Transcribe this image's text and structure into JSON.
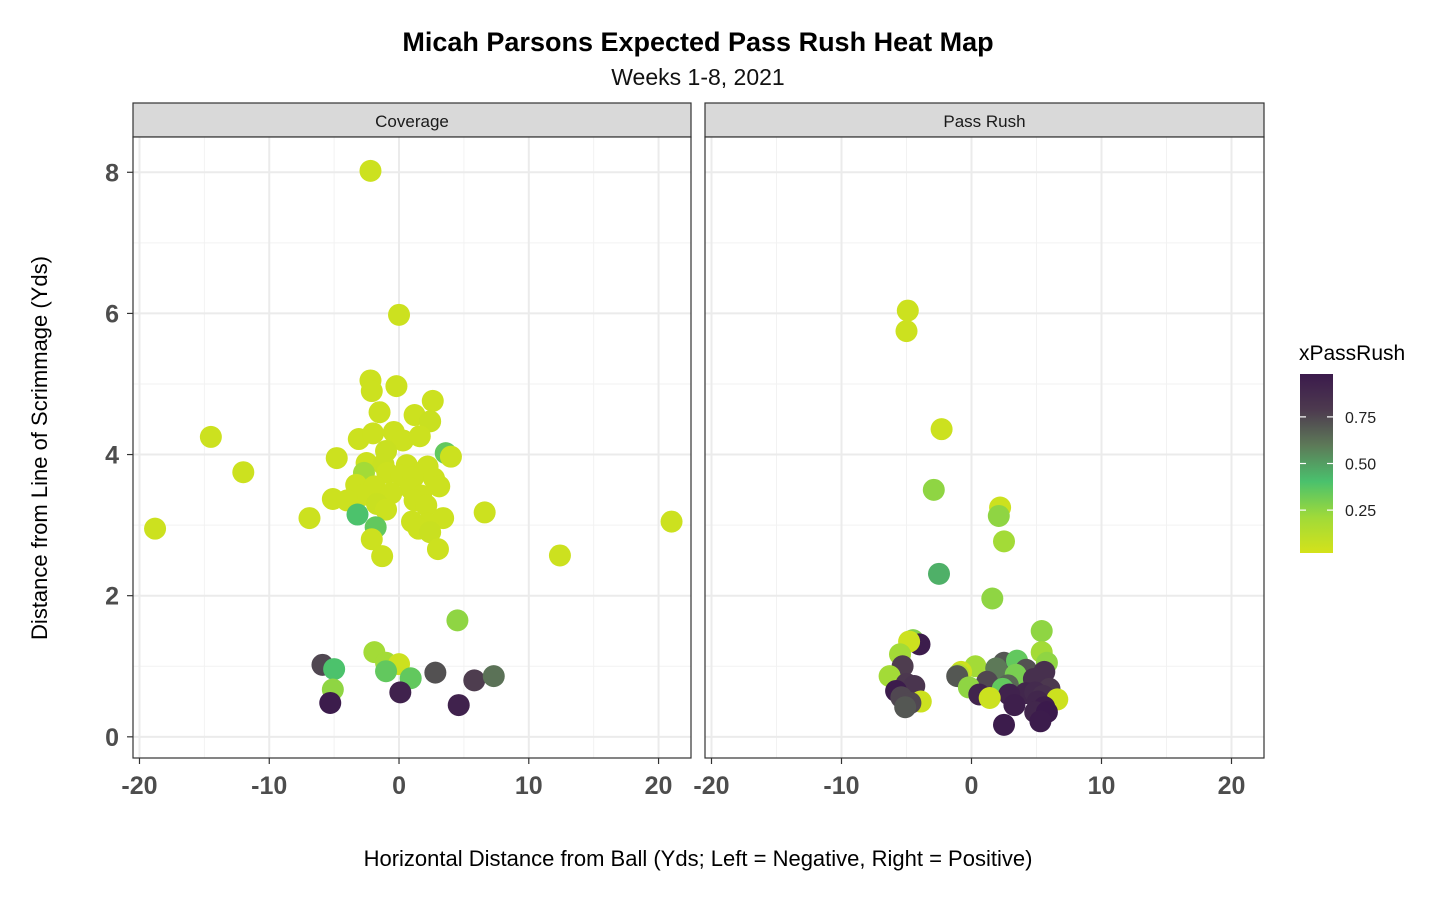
{
  "chart_data": {
    "type": "scatter",
    "title": "Micah Parsons Expected Pass Rush Heat Map",
    "subtitle": "Weeks 1-8, 2021",
    "xlabel": "Horizontal Distance from Ball (Yds; Left = Negative, Right = Positive)",
    "ylabel": "Distance from Line of Scrimmage (Yds)",
    "xlim": [
      -20.5,
      22.5
    ],
    "ylim": [
      -0.3,
      8.5
    ],
    "x_ticks": [
      -20,
      -10,
      0,
      10,
      20
    ],
    "x_tick_labels": [
      "-20",
      "-10",
      "0",
      "10",
      "20"
    ],
    "y_ticks": [
      0,
      2,
      4,
      6,
      8
    ],
    "y_tick_labels": [
      "0",
      "2",
      "4",
      "6",
      "8"
    ],
    "grid": true,
    "color_scale": {
      "title": "xPassRush",
      "palette": "viridis",
      "stops": [
        "#d4e21a",
        "#a0da39",
        "#4ac16d",
        "#5d7a58",
        "#4d3a4f",
        "#3b1a4c"
      ],
      "ticks": [
        0.25,
        0.5,
        0.75
      ],
      "tick_labels": [
        "0.25",
        "0.50",
        "0.75"
      ],
      "range": [
        0.02,
        0.98
      ],
      "legend_position": "right"
    },
    "panels": [
      {
        "name": "Coverage",
        "points": [
          {
            "x": -2.2,
            "y": 8.02,
            "v": 0.05
          },
          {
            "x": 0.0,
            "y": 5.98,
            "v": 0.05
          },
          {
            "x": -14.5,
            "y": 4.25,
            "v": 0.05
          },
          {
            "x": -12.0,
            "y": 3.75,
            "v": 0.05
          },
          {
            "x": -18.8,
            "y": 2.95,
            "v": 0.05
          },
          {
            "x": -6.9,
            "y": 3.1,
            "v": 0.05
          },
          {
            "x": -4.8,
            "y": 3.95,
            "v": 0.05
          },
          {
            "x": -5.1,
            "y": 3.37,
            "v": 0.05
          },
          {
            "x": 6.6,
            "y": 3.18,
            "v": 0.05
          },
          {
            "x": 12.4,
            "y": 2.57,
            "v": 0.05
          },
          {
            "x": 21.0,
            "y": 3.05,
            "v": 0.05
          },
          {
            "x": -2.2,
            "y": 5.05,
            "v": 0.05
          },
          {
            "x": -2.1,
            "y": 4.9,
            "v": 0.05
          },
          {
            "x": -0.2,
            "y": 4.97,
            "v": 0.05
          },
          {
            "x": -1.5,
            "y": 4.6,
            "v": 0.05
          },
          {
            "x": 2.6,
            "y": 4.76,
            "v": 0.05
          },
          {
            "x": 1.2,
            "y": 4.56,
            "v": 0.05
          },
          {
            "x": 2.4,
            "y": 4.47,
            "v": 0.06
          },
          {
            "x": -3.1,
            "y": 4.22,
            "v": 0.05
          },
          {
            "x": -2.0,
            "y": 4.3,
            "v": 0.05
          },
          {
            "x": -0.4,
            "y": 4.32,
            "v": 0.05
          },
          {
            "x": 0.3,
            "y": 4.2,
            "v": 0.05
          },
          {
            "x": 1.6,
            "y": 4.26,
            "v": 0.05
          },
          {
            "x": -1.0,
            "y": 4.05,
            "v": 0.06
          },
          {
            "x": 3.6,
            "y": 4.02,
            "v": 0.35
          },
          {
            "x": 4.0,
            "y": 3.97,
            "v": 0.05
          },
          {
            "x": -2.5,
            "y": 3.88,
            "v": 0.05
          },
          {
            "x": -1.2,
            "y": 3.86,
            "v": 0.06
          },
          {
            "x": 0.6,
            "y": 3.85,
            "v": 0.05
          },
          {
            "x": 2.2,
            "y": 3.83,
            "v": 0.05
          },
          {
            "x": -2.7,
            "y": 3.74,
            "v": 0.2
          },
          {
            "x": -0.9,
            "y": 3.74,
            "v": 0.05
          },
          {
            "x": 0.2,
            "y": 3.7,
            "v": 0.05
          },
          {
            "x": 1.1,
            "y": 3.68,
            "v": 0.05
          },
          {
            "x": 2.7,
            "y": 3.66,
            "v": 0.05
          },
          {
            "x": -3.3,
            "y": 3.57,
            "v": 0.05
          },
          {
            "x": -1.9,
            "y": 3.55,
            "v": 0.05
          },
          {
            "x": 0.9,
            "y": 3.52,
            "v": 0.05
          },
          {
            "x": 3.1,
            "y": 3.55,
            "v": 0.05
          },
          {
            "x": -2.9,
            "y": 3.42,
            "v": 0.05
          },
          {
            "x": -0.6,
            "y": 3.45,
            "v": 0.05
          },
          {
            "x": 1.7,
            "y": 3.42,
            "v": 0.05
          },
          {
            "x": -4.0,
            "y": 3.35,
            "v": 0.05
          },
          {
            "x": -1.7,
            "y": 3.3,
            "v": 0.06
          },
          {
            "x": 1.2,
            "y": 3.35,
            "v": 0.05
          },
          {
            "x": 2.1,
            "y": 3.28,
            "v": 0.05
          },
          {
            "x": -1.0,
            "y": 3.22,
            "v": 0.05
          },
          {
            "x": -3.2,
            "y": 3.15,
            "v": 0.4
          },
          {
            "x": 3.4,
            "y": 3.1,
            "v": 0.05
          },
          {
            "x": 1.0,
            "y": 3.05,
            "v": 0.05
          },
          {
            "x": 2.2,
            "y": 3.02,
            "v": 0.05
          },
          {
            "x": -1.8,
            "y": 2.97,
            "v": 0.35
          },
          {
            "x": 1.5,
            "y": 2.95,
            "v": 0.05
          },
          {
            "x": 2.4,
            "y": 2.9,
            "v": 0.06
          },
          {
            "x": -2.1,
            "y": 2.8,
            "v": 0.05
          },
          {
            "x": 3.0,
            "y": 2.66,
            "v": 0.05
          },
          {
            "x": -1.3,
            "y": 2.56,
            "v": 0.05
          },
          {
            "x": 4.5,
            "y": 1.65,
            "v": 0.25
          },
          {
            "x": -1.9,
            "y": 1.2,
            "v": 0.2
          },
          {
            "x": -1.0,
            "y": 1.05,
            "v": 0.2
          },
          {
            "x": 0.0,
            "y": 1.03,
            "v": 0.05
          },
          {
            "x": -5.9,
            "y": 1.02,
            "v": 0.75
          },
          {
            "x": -5.0,
            "y": 0.96,
            "v": 0.4
          },
          {
            "x": -1.0,
            "y": 0.93,
            "v": 0.35
          },
          {
            "x": 0.9,
            "y": 0.83,
            "v": 0.35
          },
          {
            "x": 2.8,
            "y": 0.91,
            "v": 0.72
          },
          {
            "x": 5.8,
            "y": 0.8,
            "v": 0.78
          },
          {
            "x": 7.3,
            "y": 0.86,
            "v": 0.62
          },
          {
            "x": -5.1,
            "y": 0.67,
            "v": 0.25
          },
          {
            "x": 0.1,
            "y": 0.63,
            "v": 0.93
          },
          {
            "x": -5.3,
            "y": 0.48,
            "v": 0.97
          },
          {
            "x": 4.6,
            "y": 0.45,
            "v": 0.93
          }
        ]
      },
      {
        "name": "Pass Rush",
        "points": [
          {
            "x": -4.9,
            "y": 6.04,
            "v": 0.05
          },
          {
            "x": -5.0,
            "y": 5.75,
            "v": 0.05
          },
          {
            "x": -2.3,
            "y": 4.36,
            "v": 0.05
          },
          {
            "x": -2.9,
            "y": 3.5,
            "v": 0.25
          },
          {
            "x": 2.2,
            "y": 3.25,
            "v": 0.05
          },
          {
            "x": 2.1,
            "y": 3.13,
            "v": 0.25
          },
          {
            "x": 2.5,
            "y": 2.77,
            "v": 0.2
          },
          {
            "x": -2.5,
            "y": 2.31,
            "v": 0.45
          },
          {
            "x": 1.6,
            "y": 1.96,
            "v": 0.25
          },
          {
            "x": 5.4,
            "y": 1.5,
            "v": 0.25
          },
          {
            "x": -4.5,
            "y": 1.37,
            "v": 0.28
          },
          {
            "x": -4.0,
            "y": 1.31,
            "v": 0.97
          },
          {
            "x": -4.8,
            "y": 1.35,
            "v": 0.05
          },
          {
            "x": 5.4,
            "y": 1.2,
            "v": 0.2
          },
          {
            "x": -5.5,
            "y": 1.17,
            "v": 0.2
          },
          {
            "x": 2.5,
            "y": 1.05,
            "v": 0.7
          },
          {
            "x": 3.5,
            "y": 1.08,
            "v": 0.35
          },
          {
            "x": 5.8,
            "y": 1.05,
            "v": 0.25
          },
          {
            "x": 0.3,
            "y": 1.0,
            "v": 0.2
          },
          {
            "x": -5.3,
            "y": 1.0,
            "v": 0.78
          },
          {
            "x": 1.9,
            "y": 0.97,
            "v": 0.6
          },
          {
            "x": 4.2,
            "y": 0.95,
            "v": 0.72
          },
          {
            "x": 5.6,
            "y": 0.92,
            "v": 0.85
          },
          {
            "x": -0.8,
            "y": 0.92,
            "v": 0.05
          },
          {
            "x": -1.0,
            "y": 0.88,
            "v": 0.15
          },
          {
            "x": 3.4,
            "y": 0.88,
            "v": 0.3
          },
          {
            "x": -6.3,
            "y": 0.86,
            "v": 0.2
          },
          {
            "x": -1.1,
            "y": 0.86,
            "v": 0.7
          },
          {
            "x": 4.8,
            "y": 0.82,
            "v": 0.85
          },
          {
            "x": 1.2,
            "y": 0.78,
            "v": 0.75
          },
          {
            "x": -5.0,
            "y": 0.75,
            "v": 0.8
          },
          {
            "x": -4.4,
            "y": 0.72,
            "v": 0.82
          },
          {
            "x": 2.8,
            "y": 0.73,
            "v": 0.65
          },
          {
            "x": -0.2,
            "y": 0.7,
            "v": 0.25
          },
          {
            "x": 2.4,
            "y": 0.68,
            "v": 0.35
          },
          {
            "x": 6.0,
            "y": 0.68,
            "v": 0.8
          },
          {
            "x": -5.8,
            "y": 0.65,
            "v": 0.97
          },
          {
            "x": 4.2,
            "y": 0.62,
            "v": 0.9
          },
          {
            "x": 4.9,
            "y": 0.63,
            "v": 0.88
          },
          {
            "x": 0.6,
            "y": 0.6,
            "v": 0.92
          },
          {
            "x": 2.9,
            "y": 0.6,
            "v": 0.93
          },
          {
            "x": 5.5,
            "y": 0.58,
            "v": 0.85
          },
          {
            "x": -5.4,
            "y": 0.56,
            "v": 0.75
          },
          {
            "x": 6.6,
            "y": 0.53,
            "v": 0.05
          },
          {
            "x": 1.4,
            "y": 0.55,
            "v": 0.05
          },
          {
            "x": -3.9,
            "y": 0.5,
            "v": 0.05
          },
          {
            "x": 5.1,
            "y": 0.5,
            "v": 0.9
          },
          {
            "x": -4.7,
            "y": 0.48,
            "v": 0.75
          },
          {
            "x": 3.3,
            "y": 0.45,
            "v": 0.95
          },
          {
            "x": 5.6,
            "y": 0.42,
            "v": 0.95
          },
          {
            "x": -5.1,
            "y": 0.42,
            "v": 0.7
          },
          {
            "x": 4.9,
            "y": 0.35,
            "v": 0.9
          },
          {
            "x": 5.8,
            "y": 0.35,
            "v": 0.98
          },
          {
            "x": 5.3,
            "y": 0.22,
            "v": 0.97
          },
          {
            "x": 2.5,
            "y": 0.17,
            "v": 0.97
          }
        ]
      }
    ]
  }
}
